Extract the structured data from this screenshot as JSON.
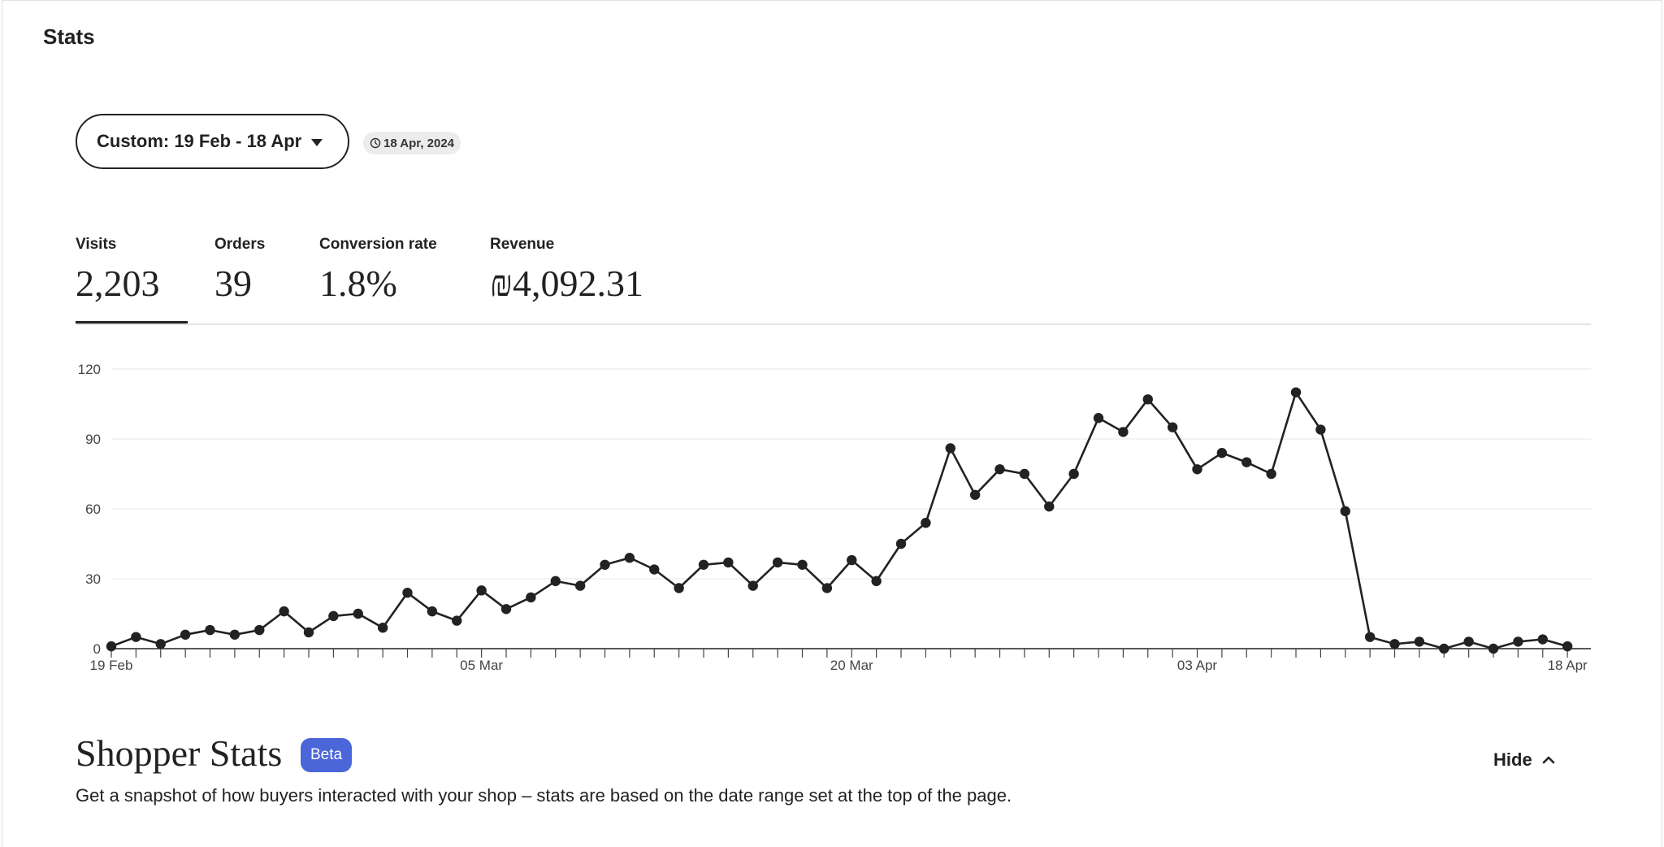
{
  "page": {
    "title": "Stats"
  },
  "date_range": {
    "label": "Custom: 19 Feb - 18 Apr",
    "updated_badge": "18 Apr, 2024"
  },
  "metrics": [
    {
      "label": "Visits",
      "value": "2,203",
      "active": true
    },
    {
      "label": "Orders",
      "value": "39",
      "active": false
    },
    {
      "label": "Conversion rate",
      "value": "1.8%",
      "active": false
    },
    {
      "label": "Revenue",
      "value": "₪4,092.31",
      "active": false
    }
  ],
  "chart_data": {
    "type": "line",
    "series": [
      {
        "values": [
          1,
          5,
          2,
          6,
          8,
          6,
          8,
          16,
          7,
          14,
          15,
          9,
          24,
          16,
          12,
          25,
          17,
          22,
          29,
          27,
          36,
          39,
          34,
          26,
          36,
          37,
          27,
          37,
          36,
          26,
          38,
          29,
          45,
          54,
          86,
          66,
          77,
          75,
          61,
          75,
          99,
          93,
          107,
          95,
          77,
          84,
          80,
          75,
          110,
          94,
          59,
          5,
          2,
          3,
          0,
          3,
          0,
          3,
          4,
          1
        ]
      }
    ],
    "x_tick_labels": [
      "19 Feb",
      "05 Mar",
      "20 Mar",
      "03 Apr",
      "18 Apr"
    ],
    "x_tick_label_indices": [
      0,
      15,
      30,
      44,
      59
    ],
    "y_ticks": [
      0,
      30,
      60,
      90,
      120
    ],
    "ylim": [
      0,
      120
    ],
    "grid": true,
    "line_color": "#222222"
  },
  "shopper_stats": {
    "title": "Shopper Stats",
    "badge": "Beta",
    "badge_color": "#4a66d8",
    "description": "Get a snapshot of how buyers interacted with your shop – stats are based on the date range set at the top of the page.",
    "hide_label": "Hide"
  }
}
